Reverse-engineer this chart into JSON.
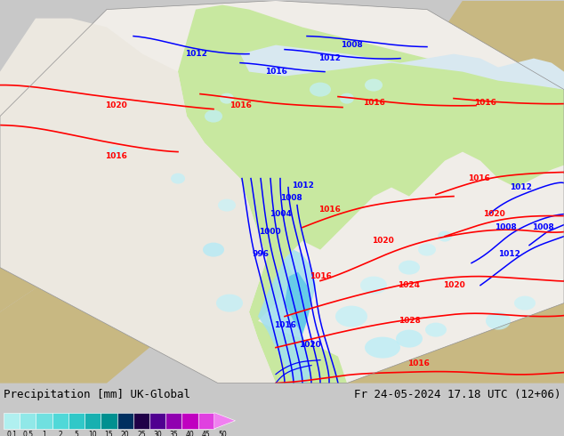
{
  "title_left": "Precipitation [mm] UK-Global",
  "title_right": "Fr 24-05-2024 17.18 UTC (12+06)",
  "fig_width": 6.34,
  "fig_height": 4.9,
  "dpi": 100,
  "bg_gray": "#c8c8c8",
  "bg_tan": "#c8b882",
  "domain_white": "#f0ede8",
  "land_green": "#c8e8a0",
  "sea_light": "#e8f0f8",
  "cb_colors": [
    "#b0f0f0",
    "#90e8e8",
    "#70e0e0",
    "#50d8d8",
    "#30c8c8",
    "#18b0b0",
    "#009090",
    "#003060",
    "#200048",
    "#500090",
    "#9000b0",
    "#c000c0",
    "#e040e0",
    "#f080f0"
  ],
  "cb_labels": [
    "0.1",
    "0.5",
    "1",
    "2",
    "5",
    "10",
    "15",
    "20",
    "25",
    "30",
    "35",
    "40",
    "45",
    "50"
  ]
}
